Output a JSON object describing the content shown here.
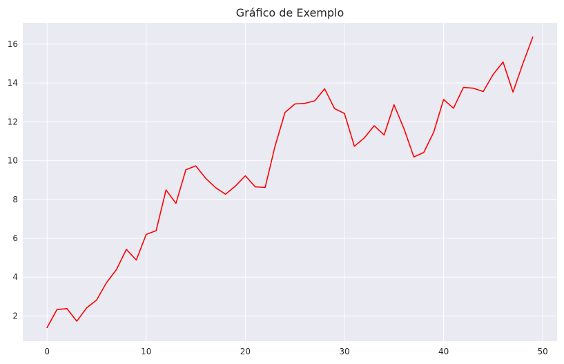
{
  "chart_data": {
    "type": "line",
    "title": "Gráfico de Exemplo",
    "xlabel": "",
    "ylabel": "",
    "xlim": [
      -2.45,
      51.45
    ],
    "ylim": [
      0.7,
      17.1
    ],
    "x_ticks": [
      0,
      10,
      20,
      30,
      40,
      50
    ],
    "y_ticks": [
      2,
      4,
      6,
      8,
      10,
      12,
      14,
      16
    ],
    "grid": true,
    "legend": "none",
    "style": {
      "plot_background": "#eaeaf2",
      "grid_color": "#ffffff",
      "line_color": "#ff0000"
    },
    "series": [
      {
        "x": [
          0,
          1,
          2,
          3,
          4,
          5,
          6,
          7,
          8,
          9,
          10,
          11,
          12,
          13,
          14,
          15,
          16,
          17,
          18,
          19,
          20,
          21,
          22,
          23,
          24,
          25,
          26,
          27,
          28,
          29,
          30,
          31,
          32,
          33,
          34,
          35,
          36,
          37,
          38,
          39,
          40,
          41,
          42,
          43,
          44,
          45,
          46,
          47,
          48,
          49
        ],
        "values": [
          1.4,
          2.33,
          2.38,
          1.73,
          2.42,
          2.82,
          3.72,
          4.39,
          5.43,
          4.88,
          6.2,
          6.39,
          8.49,
          7.8,
          9.53,
          9.73,
          9.09,
          8.61,
          8.27,
          8.69,
          9.22,
          8.65,
          8.62,
          10.75,
          12.48,
          12.92,
          12.95,
          13.08,
          13.7,
          12.68,
          12.43,
          10.74,
          11.17,
          11.8,
          11.32,
          12.88,
          11.65,
          10.19,
          10.42,
          11.46,
          13.15,
          12.7,
          13.77,
          13.73,
          13.56,
          14.44,
          15.08,
          13.53,
          15.0,
          16.37
        ]
      }
    ]
  }
}
